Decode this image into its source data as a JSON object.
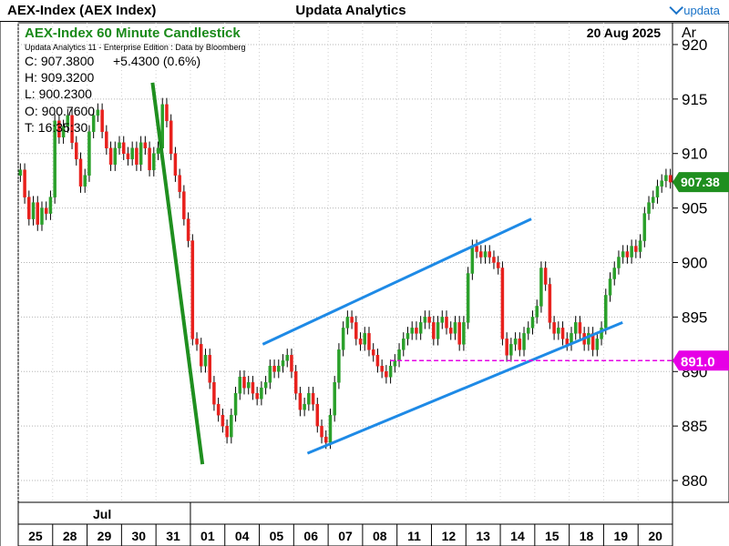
{
  "window": {
    "left_title": "AEX-Index (AEX Index)",
    "center_title": "Updata Analytics",
    "brand": "updata"
  },
  "header": {
    "chart_title": "AEX-Index 60 Minute Candlestick",
    "date": "20 Aug 2025",
    "subtitle": "Updata Analytics 11 - Enterprise Edition : Data by Bloomberg",
    "axis_unit": "Ar"
  },
  "ohlc": {
    "close": "C: 907.3800",
    "change": "+5.4300 (0.6%)",
    "high": "H: 909.3200",
    "low": "L: 900.2300",
    "open": "O: 900.7600",
    "time": "T: 16:35:30"
  },
  "price_labels": {
    "last": "907.38",
    "line": "891.0"
  },
  "colors": {
    "up": "#2aa02a",
    "down": "#e8201c",
    "trend_green": "#1f8f1f",
    "channel_blue": "#1e8ae6",
    "level_magenta": "#e600e6",
    "title_green": "#1a8a1a"
  },
  "chart_data": {
    "type": "candlestick",
    "title": "AEX-Index 60 Minute Candlestick",
    "ylim": [
      878,
      922
    ],
    "y_ticks": [
      880,
      885,
      890,
      895,
      900,
      905,
      910,
      915,
      920
    ],
    "month_label": "Jul",
    "x_labels": [
      "25",
      "28",
      "29",
      "30",
      "31",
      "01",
      "04",
      "05",
      "06",
      "07",
      "08",
      "11",
      "12",
      "13",
      "14",
      "15",
      "18",
      "19",
      "20"
    ],
    "horizontal_line": 891.0,
    "last_price": 907.38,
    "series": [
      {
        "day": "25",
        "closes": [
          908.5,
          906.0,
          904.0,
          905.5,
          903.5,
          905.0,
          904.5,
          906.0
        ]
      },
      {
        "day": "28",
        "closes": [
          913.0,
          911.5,
          912.5,
          913.5,
          911.0,
          909.5,
          907.0,
          908.0
        ]
      },
      {
        "day": "29",
        "closes": [
          912.0,
          913.5,
          914.0,
          912.0,
          910.5,
          909.0,
          910.5,
          911.0
        ]
      },
      {
        "day": "30",
        "closes": [
          910.0,
          909.5,
          910.5,
          909.0,
          911.0,
          910.5,
          908.5,
          910.0
        ]
      },
      {
        "day": "31",
        "closes": [
          910.5,
          914.5,
          913.0,
          910.0,
          908.0,
          906.5,
          904.0,
          902.0
        ]
      },
      {
        "day": "01",
        "closes": [
          893.0,
          892.5,
          890.5,
          891.5,
          889.0,
          887.0,
          886.0,
          885.0
        ]
      },
      {
        "day": "04",
        "closes": [
          884.0,
          886.0,
          888.0,
          889.5,
          888.5,
          889.0,
          888.0,
          887.5
        ]
      },
      {
        "day": "05",
        "closes": [
          888.5,
          889.0,
          890.5,
          890.0,
          890.5,
          891.0,
          891.5,
          890.0
        ]
      },
      {
        "day": "06",
        "closes": [
          888.0,
          886.5,
          887.0,
          888.0,
          887.0,
          885.0,
          884.0,
          883.5
        ]
      },
      {
        "day": "07",
        "closes": [
          886.0,
          889.0,
          892.0,
          894.0,
          895.0,
          894.5,
          893.0,
          892.5
        ]
      },
      {
        "day": "08",
        "closes": [
          893.5,
          892.0,
          891.5,
          890.5,
          890.0,
          889.5,
          890.5,
          891.0
        ]
      },
      {
        "day": "11",
        "closes": [
          892.0,
          893.0,
          893.5,
          894.0,
          893.5,
          894.5,
          895.0,
          894.5
        ]
      },
      {
        "day": "12",
        "closes": [
          893.0,
          894.5,
          895.0,
          894.0,
          893.5,
          894.5,
          892.5,
          894.5
        ]
      },
      {
        "day": "13",
        "closes": [
          899.0,
          901.5,
          901.0,
          900.5,
          901.0,
          900.5,
          900.0,
          899.5
        ]
      },
      {
        "day": "14",
        "closes": [
          893.0,
          891.5,
          892.5,
          893.0,
          892.0,
          893.5,
          894.0,
          895.0
        ]
      },
      {
        "day": "15",
        "closes": [
          896.0,
          899.5,
          898.0,
          894.5,
          893.5,
          894.0,
          893.0,
          892.5
        ]
      },
      {
        "day": "18",
        "closes": [
          893.5,
          894.5,
          893.5,
          892.5,
          893.5,
          892.0,
          893.0,
          894.0
        ]
      },
      {
        "day": "19",
        "closes": [
          897.0,
          898.5,
          899.5,
          900.5,
          901.0,
          900.5,
          901.5,
          901.0
        ]
      },
      {
        "day": "20",
        "closes": [
          902.0,
          904.5,
          905.5,
          906.0,
          907.0,
          907.5,
          908.0,
          907.38
        ]
      }
    ]
  }
}
